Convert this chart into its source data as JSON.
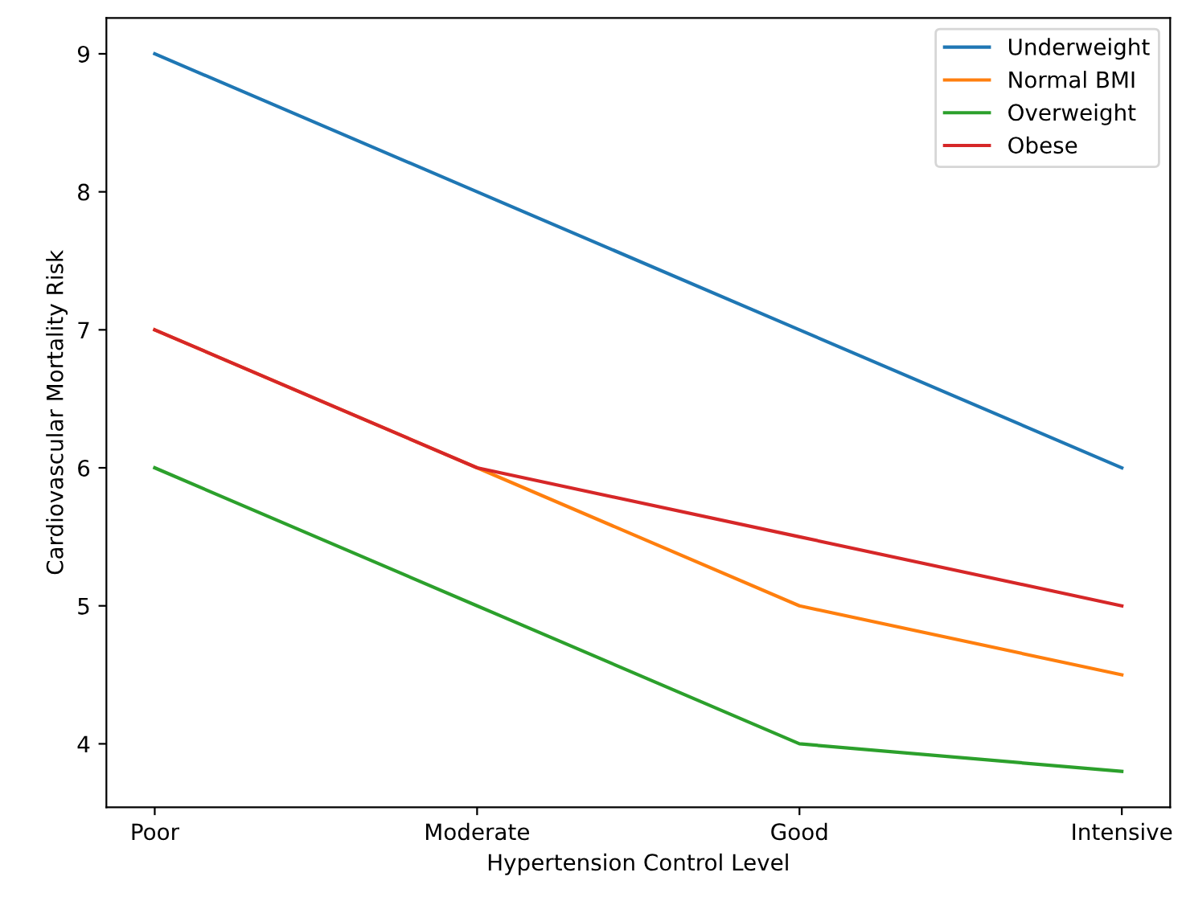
{
  "chart_data": {
    "type": "line",
    "xlabel": "Hypertension Control Level",
    "ylabel": "Cardiovascular Mortality Risk",
    "categories": [
      "Poor",
      "Moderate",
      "Good",
      "Intensive"
    ],
    "series": [
      {
        "name": "Underweight",
        "color": "#1f77b4",
        "values": [
          9,
          8,
          7,
          6
        ]
      },
      {
        "name": "Normal BMI",
        "color": "#ff7f0e",
        "values": [
          7,
          6,
          5,
          4.5
        ]
      },
      {
        "name": "Overweight",
        "color": "#2ca02c",
        "values": [
          6,
          5,
          4,
          3.8
        ]
      },
      {
        "name": "Obese",
        "color": "#d62728",
        "values": [
          7,
          6,
          5.5,
          5
        ]
      }
    ],
    "ylim": [
      3.54,
      9.26
    ],
    "yticks": [
      4,
      5,
      6,
      7,
      8,
      9
    ],
    "grid": false,
    "legend": "top right",
    "marker": "none",
    "line_style": "solid"
  }
}
